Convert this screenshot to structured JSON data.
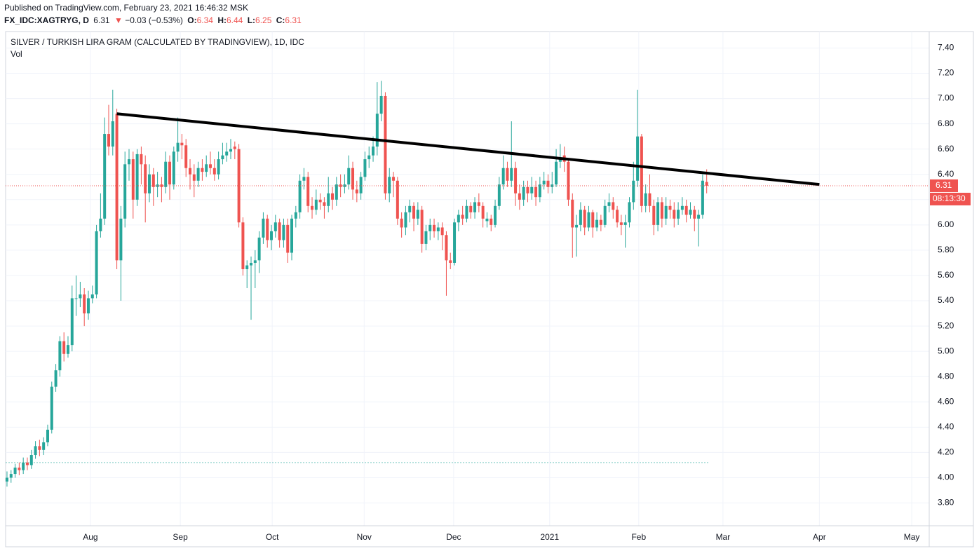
{
  "header": {
    "published": "Published on TradingView.com, February 23, 2021 16:46:32 MSK",
    "symbol": "FX_IDC:XAGTRYG, D",
    "change_arrow": "▼",
    "change": "−0.03 (−0.53%)",
    "o": "O:",
    "h": "H:",
    "l": "L:",
    "c": "C:",
    "countdown": "08:13:30"
  },
  "chart_data": {
    "type": "candlestick",
    "title": "SILVER / TURKISH LIRA GRAM (CALCULATED BY TRADINGVIEW), 1D, IDC",
    "subtitle": "Vol",
    "up_color": "#26a69a",
    "down_color": "#ef5350",
    "grid": true,
    "ylim": [
      3.62,
      7.53
    ],
    "yticks": [
      {
        "value": 3.8,
        "label": "3.80"
      },
      {
        "value": 4.0,
        "label": "4.00"
      },
      {
        "value": 4.2,
        "label": "4.20"
      },
      {
        "value": 4.4,
        "label": "4.40"
      },
      {
        "value": 4.6,
        "label": "4.60"
      },
      {
        "value": 4.8,
        "label": "4.80"
      },
      {
        "value": 5.0,
        "label": "5.00"
      },
      {
        "value": 5.2,
        "label": "5.20"
      },
      {
        "value": 5.4,
        "label": "5.40"
      },
      {
        "value": 5.6,
        "label": "5.60"
      },
      {
        "value": 5.8,
        "label": "5.80"
      },
      {
        "value": 6.0,
        "label": "6.00"
      },
      {
        "value": 6.2,
        "label": "6.20"
      },
      {
        "value": 6.4,
        "label": "6.40"
      },
      {
        "value": 6.6,
        "label": "6.60"
      },
      {
        "value": 6.8,
        "label": "6.80"
      },
      {
        "value": 7.0,
        "label": "7.00"
      },
      {
        "value": 7.2,
        "label": "7.20"
      },
      {
        "value": 7.4,
        "label": "7.40"
      }
    ],
    "xlim": [
      -0.34,
      226.7
    ],
    "xticks": [
      {
        "value": 20.5,
        "label": "Aug"
      },
      {
        "value": 42.6,
        "label": "Sep"
      },
      {
        "value": 65.2,
        "label": "Oct"
      },
      {
        "value": 87.8,
        "label": "Nov"
      },
      {
        "value": 109.8,
        "label": "Dec"
      },
      {
        "value": 133.4,
        "label": "2021"
      },
      {
        "value": 155.3,
        "label": "Feb"
      },
      {
        "value": 176,
        "label": "Mar"
      },
      {
        "value": 199.7,
        "label": "Apr"
      },
      {
        "value": 222.4,
        "label": "May"
      }
    ],
    "trendline": {
      "x": [
        27,
        199.7
      ],
      "y": [
        6.88,
        6.32
      ],
      "color": "#000000"
    },
    "reference_line": 4.12,
    "ohlc": [
      [
        3.97,
        4.05,
        3.93,
        4.0
      ],
      [
        4.0,
        4.06,
        3.96,
        4.03
      ],
      [
        4.03,
        4.11,
        4.0,
        4.08
      ],
      [
        4.08,
        4.12,
        4.02,
        4.06
      ],
      [
        4.06,
        4.16,
        4.03,
        4.12
      ],
      [
        4.12,
        4.16,
        4.06,
        4.1
      ],
      [
        4.1,
        4.22,
        4.07,
        4.18
      ],
      [
        4.18,
        4.29,
        4.15,
        4.25
      ],
      [
        4.25,
        4.3,
        4.17,
        4.22
      ],
      [
        4.22,
        4.32,
        4.18,
        4.28
      ],
      [
        4.28,
        4.42,
        4.25,
        4.38
      ],
      [
        4.38,
        4.76,
        4.35,
        4.72
      ],
      [
        4.72,
        4.9,
        4.68,
        4.85
      ],
      [
        4.85,
        5.12,
        4.8,
        5.08
      ],
      [
        5.08,
        5.15,
        4.92,
        4.98
      ],
      [
        4.98,
        5.12,
        4.95,
        5.05
      ],
      [
        5.05,
        5.52,
        5.0,
        5.42
      ],
      [
        5.42,
        5.6,
        5.28,
        5.42
      ],
      [
        5.42,
        5.55,
        5.35,
        5.45
      ],
      [
        5.45,
        5.5,
        5.2,
        5.3
      ],
      [
        5.3,
        5.48,
        5.25,
        5.42
      ],
      [
        5.42,
        5.52,
        5.38,
        5.45
      ],
      [
        5.45,
        6.0,
        5.42,
        5.95
      ],
      [
        5.95,
        6.25,
        5.9,
        6.05
      ],
      [
        6.05,
        6.85,
        6.0,
        6.72
      ],
      [
        6.72,
        6.95,
        6.55,
        6.62
      ],
      [
        6.62,
        7.07,
        6.55,
        6.82
      ],
      [
        6.88,
        6.92,
        5.65,
        5.72
      ],
      [
        5.72,
        6.15,
        5.4,
        6.05
      ],
      [
        6.05,
        6.58,
        5.98,
        6.48
      ],
      [
        6.48,
        6.6,
        6.35,
        6.52
      ],
      [
        6.52,
        6.58,
        6.05,
        6.2
      ],
      [
        6.2,
        6.6,
        6.15,
        6.56
      ],
      [
        6.56,
        6.62,
        6.32,
        6.48
      ],
      [
        6.48,
        6.55,
        6.02,
        6.25
      ],
      [
        6.25,
        6.48,
        6.18,
        6.4
      ],
      [
        6.4,
        6.45,
        6.15,
        6.3
      ],
      [
        6.3,
        6.42,
        6.22,
        6.32
      ],
      [
        6.32,
        6.38,
        6.18,
        6.3
      ],
      [
        6.3,
        6.58,
        6.25,
        6.5
      ],
      [
        6.5,
        6.55,
        6.2,
        6.32
      ],
      [
        6.32,
        6.62,
        6.28,
        6.58
      ],
      [
        6.58,
        6.85,
        6.5,
        6.65
      ],
      [
        6.65,
        6.72,
        6.52,
        6.63
      ],
      [
        6.63,
        6.68,
        6.38,
        6.45
      ],
      [
        6.45,
        6.52,
        6.28,
        6.4
      ],
      [
        6.4,
        6.48,
        6.22,
        6.35
      ],
      [
        6.35,
        6.5,
        6.3,
        6.45
      ],
      [
        6.45,
        6.52,
        6.35,
        6.42
      ],
      [
        6.42,
        6.55,
        6.38,
        6.48
      ],
      [
        6.48,
        6.58,
        6.4,
        6.45
      ],
      [
        6.45,
        6.52,
        6.35,
        6.4
      ],
      [
        6.4,
        6.58,
        6.36,
        6.52
      ],
      [
        6.52,
        6.65,
        6.48,
        6.55
      ],
      [
        6.55,
        6.65,
        6.5,
        6.58
      ],
      [
        6.58,
        6.68,
        6.52,
        6.6
      ],
      [
        6.62,
        6.66,
        6.52,
        6.6
      ],
      [
        6.6,
        6.64,
        5.98,
        6.02
      ],
      [
        6.02,
        6.06,
        5.6,
        5.65
      ],
      [
        5.65,
        5.72,
        5.5,
        5.68
      ],
      [
        5.68,
        5.75,
        5.25,
        5.7
      ],
      [
        5.7,
        5.8,
        5.5,
        5.72
      ],
      [
        5.72,
        5.95,
        5.62,
        5.9
      ],
      [
        5.9,
        6.1,
        5.85,
        6.05
      ],
      [
        6.05,
        6.08,
        5.82,
        5.88
      ],
      [
        5.88,
        6.0,
        5.8,
        5.95
      ],
      [
        5.95,
        6.08,
        5.9,
        6.02
      ],
      [
        6.02,
        6.05,
        5.82,
        5.88
      ],
      [
        5.88,
        6.05,
        5.82,
        6.0
      ],
      [
        6.0,
        6.05,
        5.7,
        5.78
      ],
      [
        5.78,
        6.08,
        5.72,
        6.05
      ],
      [
        6.05,
        6.15,
        5.98,
        6.1
      ],
      [
        6.1,
        6.4,
        6.05,
        6.35
      ],
      [
        6.35,
        6.45,
        6.28,
        6.38
      ],
      [
        6.38,
        6.42,
        6.1,
        6.15
      ],
      [
        6.15,
        6.22,
        6.05,
        6.12
      ],
      [
        6.12,
        6.28,
        6.08,
        6.2
      ],
      [
        6.2,
        6.25,
        6.12,
        6.18
      ],
      [
        6.18,
        6.22,
        6.05,
        6.15
      ],
      [
        6.15,
        6.38,
        6.1,
        6.25
      ],
      [
        6.25,
        6.3,
        6.12,
        6.2
      ],
      [
        6.2,
        6.38,
        6.15,
        6.32
      ],
      [
        6.32,
        6.4,
        6.22,
        6.3
      ],
      [
        6.3,
        6.4,
        6.25,
        6.32
      ],
      [
        6.32,
        6.55,
        6.28,
        6.45
      ],
      [
        6.45,
        6.5,
        6.2,
        6.28
      ],
      [
        6.28,
        6.35,
        6.18,
        6.25
      ],
      [
        6.25,
        6.42,
        6.2,
        6.38
      ],
      [
        6.38,
        6.58,
        6.35,
        6.52
      ],
      [
        6.52,
        6.62,
        6.45,
        6.55
      ],
      [
        6.55,
        6.7,
        6.5,
        6.62
      ],
      [
        6.62,
        7.13,
        6.55,
        6.88
      ],
      [
        6.88,
        7.14,
        6.82,
        7.02
      ],
      [
        7.02,
        7.05,
        6.2,
        6.25
      ],
      [
        6.25,
        6.45,
        6.18,
        6.38
      ],
      [
        6.38,
        6.42,
        6.22,
        6.35
      ],
      [
        6.35,
        6.38,
        6.0,
        6.05
      ],
      [
        6.05,
        6.1,
        5.9,
        5.98
      ],
      [
        5.98,
        6.15,
        5.92,
        6.1
      ],
      [
        6.1,
        6.2,
        6.02,
        6.15
      ],
      [
        6.15,
        6.18,
        5.95,
        6.05
      ],
      [
        6.05,
        6.18,
        6.0,
        6.12
      ],
      [
        6.12,
        6.15,
        5.78,
        5.85
      ],
      [
        5.85,
        6.0,
        5.8,
        5.95
      ],
      [
        5.95,
        6.05,
        5.88,
        6.0
      ],
      [
        6.0,
        6.05,
        5.9,
        5.95
      ],
      [
        5.95,
        6.02,
        5.88,
        5.98
      ],
      [
        5.98,
        6.02,
        5.8,
        5.92
      ],
      [
        5.92,
        5.95,
        5.44,
        5.72
      ],
      [
        5.72,
        5.78,
        5.65,
        5.7
      ],
      [
        5.7,
        6.05,
        5.68,
        6.02
      ],
      [
        6.02,
        6.12,
        5.95,
        6.08
      ],
      [
        6.08,
        6.15,
        6.0,
        6.05
      ],
      [
        6.05,
        6.2,
        6.02,
        6.15
      ],
      [
        6.15,
        6.18,
        6.05,
        6.1
      ],
      [
        6.1,
        6.22,
        6.05,
        6.18
      ],
      [
        6.18,
        6.25,
        6.1,
        6.15
      ],
      [
        6.15,
        6.18,
        5.98,
        6.05
      ],
      [
        6.03,
        6.1,
        5.98,
        6.05
      ],
      [
        6.05,
        6.08,
        5.95,
        6.0
      ],
      [
        6.0,
        6.2,
        5.98,
        6.15
      ],
      [
        6.15,
        6.38,
        6.12,
        6.32
      ],
      [
        6.32,
        6.55,
        6.28,
        6.45
      ],
      [
        6.45,
        6.5,
        6.3,
        6.35
      ],
      [
        6.35,
        6.82,
        6.3,
        6.45
      ],
      [
        6.45,
        6.5,
        6.15,
        6.25
      ],
      [
        6.25,
        6.32,
        6.12,
        6.2
      ],
      [
        6.2,
        6.35,
        6.15,
        6.3
      ],
      [
        6.3,
        6.35,
        6.18,
        6.25
      ],
      [
        6.25,
        6.38,
        6.2,
        6.3
      ],
      [
        6.3,
        6.35,
        6.15,
        6.22
      ],
      [
        6.22,
        6.38,
        6.18,
        6.32
      ],
      [
        6.32,
        6.42,
        6.28,
        6.35
      ],
      [
        6.35,
        6.4,
        6.25,
        6.3
      ],
      [
        6.3,
        6.42,
        6.25,
        6.32
      ],
      [
        6.32,
        6.6,
        6.3,
        6.5
      ],
      [
        6.5,
        6.64,
        6.45,
        6.52
      ],
      [
        6.55,
        6.62,
        6.42,
        6.5
      ],
      [
        6.5,
        6.52,
        6.15,
        6.2
      ],
      [
        6.2,
        6.25,
        5.74,
        5.98
      ],
      [
        5.98,
        6.08,
        5.75,
        6.0
      ],
      [
        6.0,
        6.18,
        5.95,
        6.12
      ],
      [
        6.12,
        6.15,
        5.92,
        5.98
      ],
      [
        5.98,
        6.15,
        5.95,
        6.1
      ],
      [
        6.1,
        6.12,
        5.9,
        5.98
      ],
      [
        5.98,
        6.1,
        5.95,
        6.04
      ],
      [
        6.04,
        6.08,
        5.95,
        6.0
      ],
      [
        6.0,
        6.2,
        5.98,
        6.15
      ],
      [
        6.15,
        6.25,
        6.1,
        6.18
      ],
      [
        6.18,
        6.22,
        6.05,
        6.12
      ],
      [
        6.12,
        6.15,
        5.98,
        6.02
      ],
      [
        6.02,
        6.08,
        5.92,
        6.0
      ],
      [
        6.0,
        6.08,
        5.82,
        6.02
      ],
      [
        6.02,
        6.22,
        5.98,
        6.18
      ],
      [
        6.18,
        6.5,
        6.12,
        6.35
      ],
      [
        6.35,
        7.07,
        6.3,
        6.7
      ],
      [
        6.7,
        6.72,
        6.1,
        6.15
      ],
      [
        6.15,
        6.32,
        6.1,
        6.25
      ],
      [
        6.25,
        6.4,
        6.1,
        6.15
      ],
      [
        6.15,
        6.2,
        5.92,
        6.0
      ],
      [
        6.0,
        6.22,
        5.95,
        6.18
      ],
      [
        6.18,
        6.22,
        5.98,
        6.05
      ],
      [
        6.05,
        6.22,
        6.0,
        6.15
      ],
      [
        6.15,
        6.2,
        6.05,
        6.12
      ],
      [
        6.12,
        6.18,
        5.98,
        6.05
      ],
      [
        6.05,
        6.18,
        6.0,
        6.12
      ],
      [
        6.12,
        6.22,
        6.08,
        6.15
      ],
      [
        6.15,
        6.2,
        6.02,
        6.08
      ],
      [
        6.08,
        6.18,
        6.05,
        6.12
      ],
      [
        6.12,
        6.15,
        5.95,
        6.05
      ],
      [
        6.05,
        6.12,
        5.83,
        6.08
      ],
      [
        6.08,
        6.4,
        6.05,
        6.35
      ],
      [
        6.34,
        6.44,
        6.25,
        6.31
      ]
    ]
  }
}
